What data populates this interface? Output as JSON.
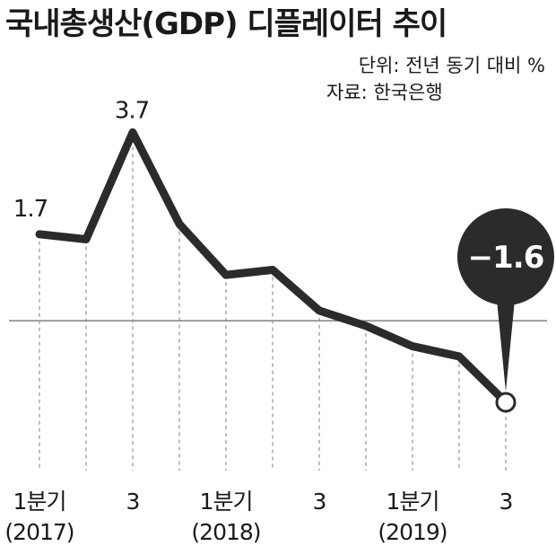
{
  "chart_data": {
    "type": "line",
    "title": "국내총생산(GDP) 디플레이터 추이",
    "unit_note": "단위: 전년 동기 대비 %",
    "source_note": "자료: 한국은행",
    "x": [
      "2017Q1",
      "2017Q2",
      "2017Q3",
      "2017Q4",
      "2018Q1",
      "2018Q2",
      "2018Q3",
      "2018Q4",
      "2019Q1",
      "2019Q2",
      "2019Q3"
    ],
    "values": [
      1.7,
      1.6,
      3.7,
      1.9,
      0.9,
      1.0,
      0.2,
      -0.1,
      -0.5,
      -0.7,
      -1.6
    ],
    "data_labels": [
      {
        "index": 0,
        "text": "1.7"
      },
      {
        "index": 2,
        "text": "3.7"
      },
      {
        "index": 10,
        "text": "−1.6"
      }
    ],
    "x_ticks": [
      {
        "index": 0,
        "line1": "1분기",
        "line2": "(2017)"
      },
      {
        "index": 2,
        "line1": "3",
        "line2": ""
      },
      {
        "index": 4,
        "line1": "1분기",
        "line2": "(2018)"
      },
      {
        "index": 6,
        "line1": "3",
        "line2": ""
      },
      {
        "index": 8,
        "line1": "1분기",
        "line2": "(2019)"
      },
      {
        "index": 10,
        "line1": "3",
        "line2": ""
      }
    ],
    "baseline": 0,
    "ylim": [
      -2.2,
      4.5
    ],
    "grid": "vertical dashed",
    "colors": {
      "line": "#2b2b2b",
      "callout": "#2b2b2b",
      "baseline": "#8a8a8a",
      "grid": "#9a9a9a",
      "text": "#1a1a1a"
    }
  }
}
